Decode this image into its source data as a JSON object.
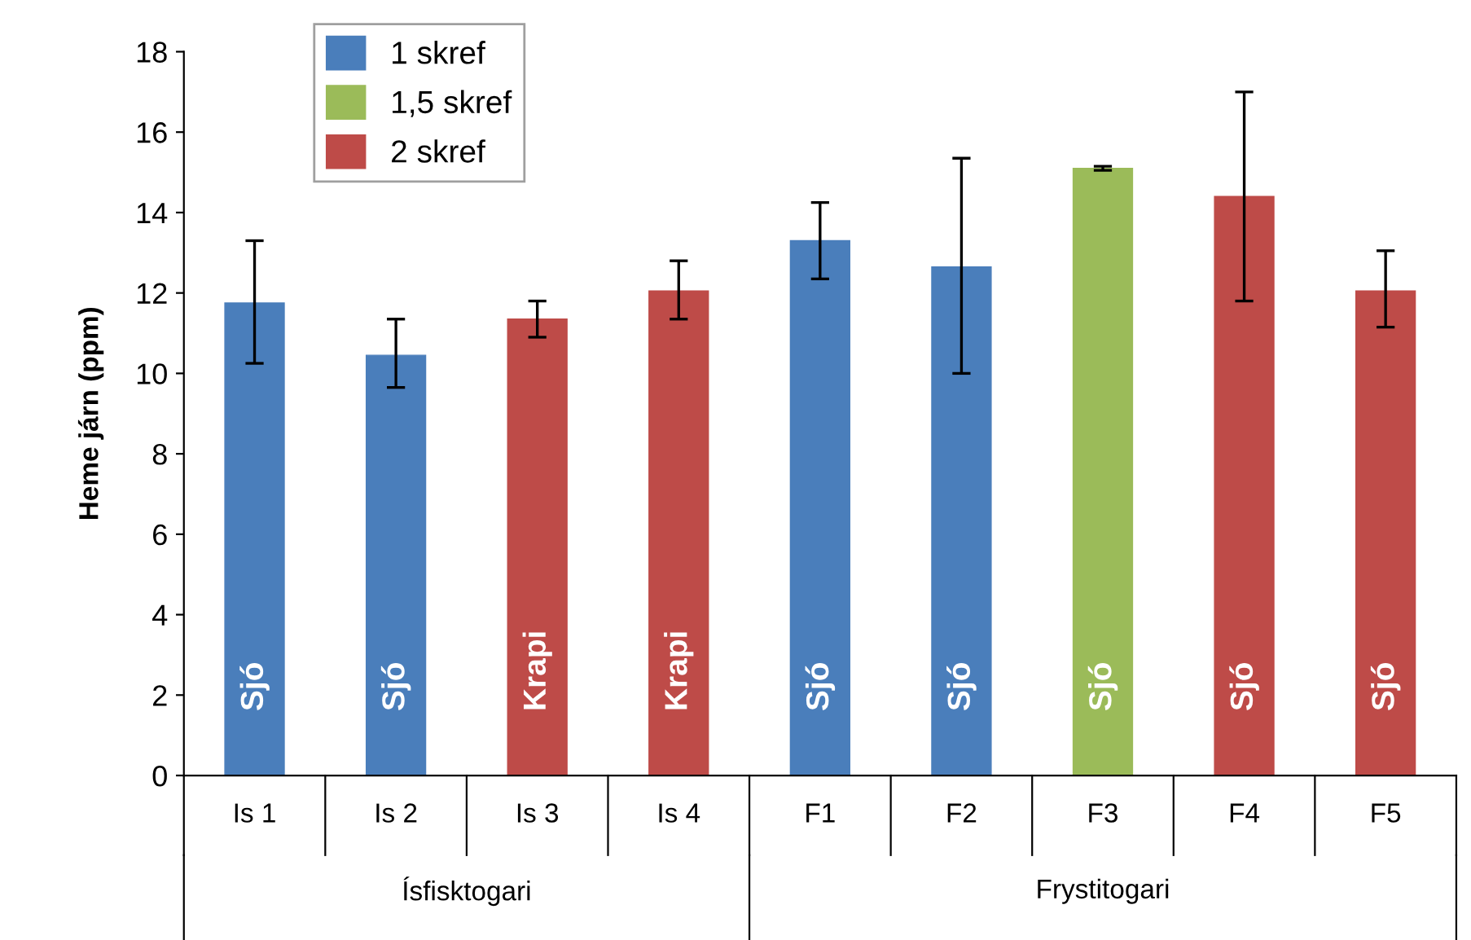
{
  "chart_data": {
    "type": "bar",
    "ylabel": "Heme járn (ppm)",
    "categories": [
      "Is 1",
      "Is 2",
      "Is 3",
      "Is 4",
      "F1",
      "F2",
      "F3",
      "F4",
      "F5"
    ],
    "series": [
      {
        "name": "1 skref",
        "color": "#4a7ebb",
        "values": [
          11.75,
          10.45,
          null,
          null,
          13.3,
          12.65,
          null,
          null,
          null
        ],
        "errors": [
          [
            10.25,
            13.3
          ],
          [
            9.65,
            11.35
          ],
          null,
          null,
          [
            12.35,
            14.25
          ],
          [
            10.0,
            15.35
          ],
          null,
          null,
          null
        ]
      },
      {
        "name": "1,5 skref",
        "color": "#9bbb59",
        "values": [
          null,
          null,
          null,
          null,
          null,
          null,
          15.1,
          null,
          null
        ],
        "errors": [
          null,
          null,
          null,
          null,
          null,
          null,
          [
            15.05,
            15.15
          ],
          null,
          null
        ]
      },
      {
        "name": "2 skref",
        "color": "#be4b48",
        "values": [
          null,
          null,
          11.35,
          12.05,
          null,
          null,
          null,
          14.4,
          12.05
        ],
        "errors": [
          null,
          null,
          [
            10.9,
            11.8
          ],
          [
            11.35,
            12.8
          ],
          null,
          null,
          null,
          [
            11.8,
            17.0
          ],
          [
            11.15,
            13.05
          ]
        ]
      }
    ],
    "annotations": [
      "Sjó",
      "Sjó",
      "Krapi",
      "Krapi",
      "Sjó",
      "Sjó",
      "Sjó",
      "Sjó",
      "Sjó",
      "Ísfisktogari",
      "Frystitogari"
    ],
    "ylim": [
      0,
      18
    ],
    "yticks": [
      0,
      2,
      4,
      6,
      8,
      10,
      12,
      14,
      16,
      18
    ],
    "legend": "top left",
    "grid": false
  }
}
